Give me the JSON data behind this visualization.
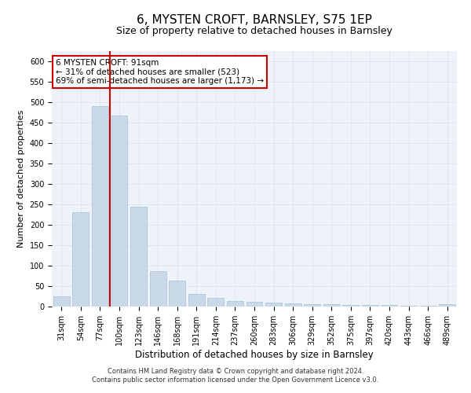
{
  "title": "6, MYSTEN CROFT, BARNSLEY, S75 1EP",
  "subtitle": "Size of property relative to detached houses in Barnsley",
  "xlabel": "Distribution of detached houses by size in Barnsley",
  "ylabel": "Number of detached properties",
  "categories": [
    "31sqm",
    "54sqm",
    "77sqm",
    "100sqm",
    "123sqm",
    "146sqm",
    "168sqm",
    "191sqm",
    "214sqm",
    "237sqm",
    "260sqm",
    "283sqm",
    "306sqm",
    "329sqm",
    "352sqm",
    "375sqm",
    "397sqm",
    "420sqm",
    "443sqm",
    "466sqm",
    "489sqm"
  ],
  "values": [
    25,
    230,
    490,
    468,
    245,
    87,
    63,
    30,
    22,
    14,
    11,
    10,
    8,
    6,
    5,
    4,
    3,
    4,
    2,
    2,
    5
  ],
  "bar_color": "#c9d9ea",
  "bar_edge_color": "#a8c0d6",
  "grid_color": "#dce6f0",
  "vline_color": "#cc0000",
  "vline_x_index": 2.5,
  "annotation_text": "6 MYSTEN CROFT: 91sqm\n← 31% of detached houses are smaller (523)\n69% of semi-detached houses are larger (1,173) →",
  "annotation_box_edge": "#cc0000",
  "annotation_box_bg": "#ffffff",
  "ylim": [
    0,
    625
  ],
  "yticks": [
    0,
    50,
    100,
    150,
    200,
    250,
    300,
    350,
    400,
    450,
    500,
    550,
    600
  ],
  "footer": "Contains HM Land Registry data © Crown copyright and database right 2024.\nContains public sector information licensed under the Open Government Licence v3.0.",
  "bg_color": "#eef2f9",
  "title_fontsize": 11,
  "subtitle_fontsize": 9,
  "xlabel_fontsize": 8.5,
  "ylabel_fontsize": 8,
  "tick_fontsize": 7,
  "footer_fontsize": 6,
  "annotation_fontsize": 7.5
}
